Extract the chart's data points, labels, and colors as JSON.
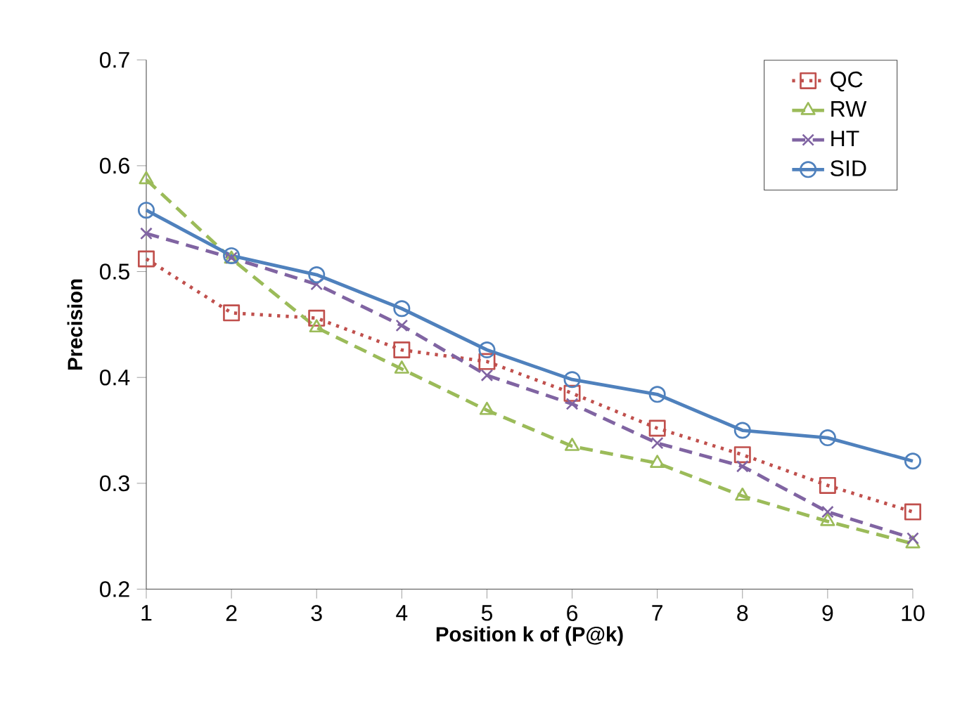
{
  "chart_data": {
    "type": "line",
    "xlabel": "Position k of (P@k)",
    "ylabel": "Precision",
    "x": [
      1,
      2,
      3,
      4,
      5,
      6,
      7,
      8,
      9,
      10
    ],
    "xlim": [
      1,
      10
    ],
    "xticks": [
      1,
      2,
      3,
      4,
      5,
      6,
      7,
      8,
      9,
      10
    ],
    "ylim": [
      0.2,
      0.7
    ],
    "yticks": [
      {
        "value": 0.2,
        "label": "0.2"
      },
      {
        "value": 0.3,
        "label": "0.3"
      },
      {
        "value": 0.4,
        "label": "0.4"
      },
      {
        "value": 0.5,
        "label": "0.5"
      },
      {
        "value": 0.6,
        "label": "0.6"
      },
      {
        "value": 0.7,
        "label": "0.7"
      }
    ],
    "grid": false,
    "legend": "top right",
    "series": [
      {
        "name": "QC",
        "color": "#c0504d",
        "marker": "square",
        "line_style": "dotted",
        "values": [
          0.512,
          0.461,
          0.456,
          0.426,
          0.415,
          0.385,
          0.352,
          0.327,
          0.298,
          0.273
        ]
      },
      {
        "name": "RW",
        "color": "#9bbb59",
        "marker": "triangle",
        "line_style": "dashed",
        "values": [
          0.587,
          0.512,
          0.447,
          0.408,
          0.369,
          0.335,
          0.319,
          0.288,
          0.264,
          0.243
        ]
      },
      {
        "name": "HT",
        "color": "#8064a2",
        "marker": "cross",
        "line_style": "dashed",
        "values": [
          0.536,
          0.513,
          0.488,
          0.449,
          0.402,
          0.375,
          0.338,
          0.316,
          0.273,
          0.248
        ]
      },
      {
        "name": "SID",
        "color": "#4f81bd",
        "marker": "circle",
        "line_style": "solid",
        "values": [
          0.558,
          0.515,
          0.497,
          0.465,
          0.426,
          0.398,
          0.384,
          0.35,
          0.343,
          0.321
        ]
      }
    ]
  }
}
